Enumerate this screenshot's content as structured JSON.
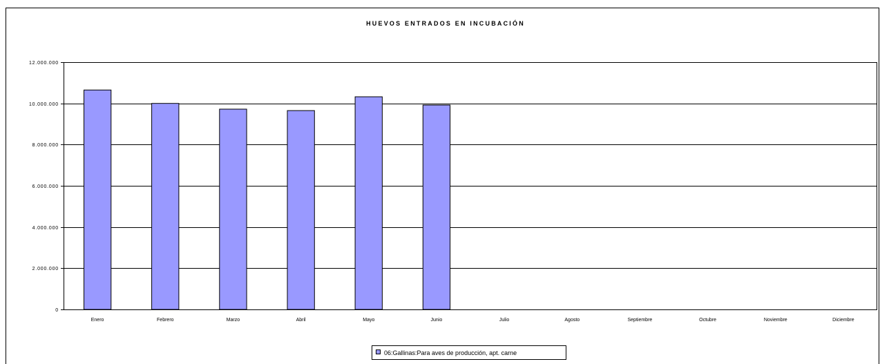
{
  "chart_data": {
    "type": "bar",
    "title": "HUEVOS ENTRADOS EN INCUBACIÓN",
    "xlabel": "",
    "ylabel": "",
    "categories": [
      "Enero",
      "Febrero",
      "Marzo",
      "Abril",
      "Mayo",
      "Junio",
      "Julio",
      "Agosto",
      "Septiembre",
      "Octubre",
      "Noviembre",
      "Diciembre"
    ],
    "series": [
      {
        "name": "06:Gallinas:Para aves de producción, apt. carne",
        "values": [
          10650000,
          10000000,
          9720000,
          9650000,
          10320000,
          9920000,
          null,
          null,
          null,
          null,
          null,
          null
        ],
        "color": "#9999ff"
      }
    ],
    "ylim": [
      0,
      12000000
    ],
    "yticks": [
      0,
      2000000,
      4000000,
      6000000,
      8000000,
      10000000,
      12000000
    ],
    "ytick_labels": [
      "0",
      "2.000.000",
      "4.000.000",
      "6.000.000",
      "8.000.000",
      "10.000.000",
      "12.000.000"
    ],
    "grid": true,
    "legend_position": "bottom-center"
  }
}
